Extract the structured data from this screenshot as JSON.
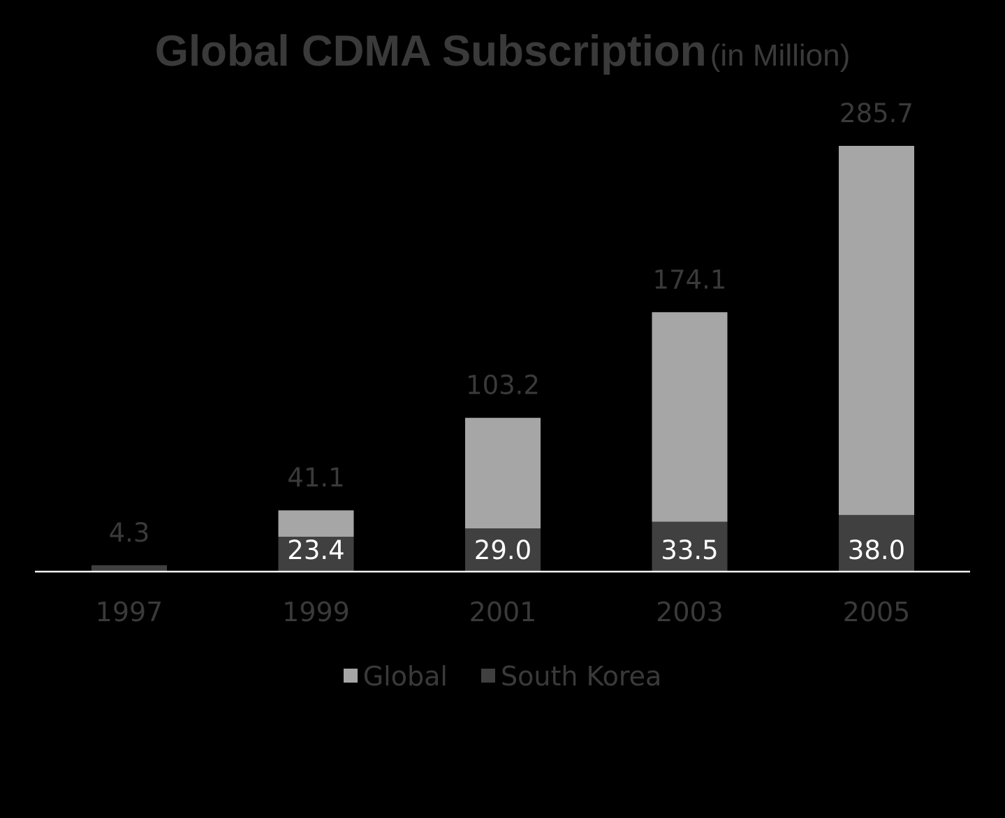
{
  "chart_data": {
    "type": "bar",
    "stacked": true,
    "title": "Global CDMA Subscription",
    "subtitle": "(in Million)",
    "categories": [
      "1997",
      "1999",
      "2001",
      "2003",
      "2005"
    ],
    "series": [
      {
        "name": "South Korea",
        "color": "#404040",
        "values": [
          4.3,
          23.4,
          29.0,
          33.5,
          38.0
        ],
        "labels": [
          "",
          "23.4",
          "29.0",
          "33.5",
          "38.0"
        ]
      },
      {
        "name": "Global",
        "color": "#a6a6a6",
        "values": [
          0,
          17.7,
          74.2,
          140.6,
          247.7
        ]
      }
    ],
    "totals": [
      4.3,
      41.1,
      103.2,
      174.1,
      285.7
    ],
    "total_labels": [
      "4.3",
      "41.1",
      "103.2",
      "174.1",
      "285.7"
    ],
    "ylim": [
      0,
      285.7
    ],
    "grid": false,
    "y_axis_visible": false,
    "legend_position": "bottom",
    "legend": [
      {
        "name": "Global",
        "color": "#a6a6a6"
      },
      {
        "name": "South Korea",
        "color": "#404040"
      }
    ],
    "text_color": "#3a3a3a",
    "inner_label_color": "#ffffff",
    "axis_color": "#f2f2f2"
  }
}
